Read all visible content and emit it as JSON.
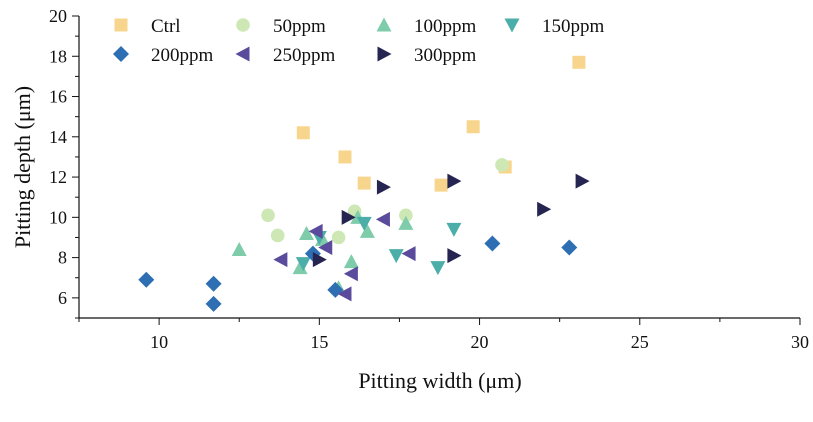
{
  "chart_data": {
    "type": "scatter",
    "title": "",
    "xlabel": "Pitting width (μm)",
    "ylabel": "Pitting depth (μm)",
    "xlim": [
      7.5,
      30
    ],
    "ylim": [
      5,
      20
    ],
    "xticks": [
      10,
      15,
      20,
      25,
      30
    ],
    "yticks": [
      6,
      8,
      10,
      12,
      14,
      16,
      18,
      20
    ],
    "x_minor_step": 2.5,
    "y_minor_step": 1,
    "grid": false,
    "legend_placement": "top, inside plot, 4 columns",
    "series": [
      {
        "name": "Ctrl",
        "marker": "square",
        "color": "#F8D58C",
        "points": [
          [
            14.5,
            14.2
          ],
          [
            15.8,
            13.0
          ],
          [
            16.4,
            11.7
          ],
          [
            18.8,
            11.6
          ],
          [
            19.8,
            14.5
          ],
          [
            20.8,
            12.5
          ],
          [
            23.1,
            17.7
          ]
        ]
      },
      {
        "name": "50ppm",
        "marker": "circle",
        "color": "#CDE8B4",
        "points": [
          [
            13.4,
            10.1
          ],
          [
            13.7,
            9.1
          ],
          [
            15.6,
            9.0
          ],
          [
            16.1,
            10.3
          ],
          [
            17.7,
            10.1
          ],
          [
            20.7,
            12.6
          ]
        ]
      },
      {
        "name": "100ppm",
        "marker": "triangle-up",
        "color": "#7FCCAA",
        "points": [
          [
            12.5,
            8.4
          ],
          [
            14.4,
            7.5
          ],
          [
            14.6,
            9.2
          ],
          [
            15.1,
            8.9
          ],
          [
            15.6,
            6.5
          ],
          [
            16.0,
            7.8
          ],
          [
            16.2,
            10.0
          ],
          [
            16.5,
            9.3
          ],
          [
            17.7,
            9.7
          ]
        ]
      },
      {
        "name": "150ppm",
        "marker": "triangle-down",
        "color": "#4BAEA8",
        "points": [
          [
            14.5,
            7.7
          ],
          [
            15.0,
            9.0
          ],
          [
            16.4,
            9.7
          ],
          [
            17.4,
            8.1
          ],
          [
            18.7,
            7.5
          ],
          [
            19.2,
            9.4
          ]
        ]
      },
      {
        "name": "200ppm",
        "marker": "diamond",
        "color": "#2E6FB3",
        "points": [
          [
            9.6,
            6.9
          ],
          [
            11.7,
            6.7
          ],
          [
            11.7,
            5.7
          ],
          [
            14.8,
            8.2
          ],
          [
            15.5,
            6.4
          ],
          [
            20.4,
            8.7
          ],
          [
            22.8,
            8.5
          ]
        ]
      },
      {
        "name": "250ppm",
        "marker": "triangle-left",
        "color": "#5A4B9C",
        "points": [
          [
            13.8,
            7.9
          ],
          [
            14.9,
            9.3
          ],
          [
            15.2,
            8.5
          ],
          [
            15.8,
            6.2
          ],
          [
            16.0,
            7.2
          ],
          [
            17.0,
            9.9
          ],
          [
            17.8,
            8.2
          ]
        ]
      },
      {
        "name": "300ppm",
        "marker": "triangle-right",
        "color": "#262451",
        "points": [
          [
            15.0,
            7.9
          ],
          [
            15.9,
            10.0
          ],
          [
            17.0,
            11.5
          ],
          [
            19.2,
            11.8
          ],
          [
            19.2,
            8.1
          ],
          [
            22.0,
            10.4
          ],
          [
            23.2,
            11.8
          ]
        ]
      }
    ]
  }
}
